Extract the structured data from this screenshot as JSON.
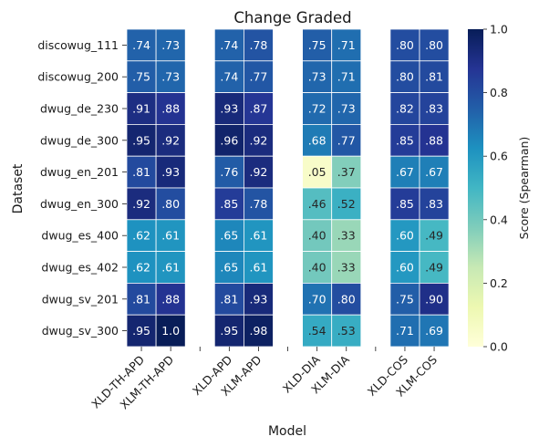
{
  "chart_data": {
    "type": "heatmap",
    "title": "Change Graded",
    "xlabel": "Model",
    "ylabel": "Dataset",
    "colorbar_label": "Score (Spearman)",
    "colorbar_ticks": [
      "0.0",
      "0.2",
      "0.4",
      "0.6",
      "0.8",
      "1.0"
    ],
    "vmin": 0.0,
    "vmax": 1.0,
    "colormap": "YlGnBu",
    "colormap_stops": [
      "#ffffd9",
      "#edf8b1",
      "#c7e9b4",
      "#7fcdbb",
      "#41b6c4",
      "#1d91c0",
      "#225ea8",
      "#253494",
      "#081d58"
    ],
    "columns": [
      "XLD-TH-APD",
      "XLM-TH-APD",
      "",
      "XLD-APD",
      "XLM-APD",
      "",
      "XLD-DIA",
      "XLM-DIA",
      "",
      "XLD-COS",
      "XLM-COS"
    ],
    "rows": [
      "discowug_111",
      "discowug_200",
      "dwug_de_230",
      "dwug_de_300",
      "dwug_en_201",
      "dwug_en_300",
      "dwug_es_400",
      "dwug_es_402",
      "dwug_sv_201",
      "dwug_sv_300"
    ],
    "values": [
      [
        0.74,
        0.73,
        null,
        0.74,
        0.78,
        null,
        0.75,
        0.71,
        null,
        0.8,
        0.8
      ],
      [
        0.75,
        0.73,
        null,
        0.74,
        0.77,
        null,
        0.73,
        0.71,
        null,
        0.8,
        0.81
      ],
      [
        0.91,
        0.88,
        null,
        0.93,
        0.87,
        null,
        0.72,
        0.73,
        null,
        0.82,
        0.83
      ],
      [
        0.95,
        0.92,
        null,
        0.96,
        0.92,
        null,
        0.68,
        0.77,
        null,
        0.85,
        0.88
      ],
      [
        0.81,
        0.93,
        null,
        0.76,
        0.92,
        null,
        0.05,
        0.37,
        null,
        0.67,
        0.67
      ],
      [
        0.92,
        0.8,
        null,
        0.85,
        0.78,
        null,
        0.46,
        0.52,
        null,
        0.85,
        0.83
      ],
      [
        0.62,
        0.61,
        null,
        0.65,
        0.61,
        null,
        0.4,
        0.33,
        null,
        0.6,
        0.49
      ],
      [
        0.62,
        0.61,
        null,
        0.65,
        0.61,
        null,
        0.4,
        0.33,
        null,
        0.6,
        0.49
      ],
      [
        0.81,
        0.88,
        null,
        0.81,
        0.93,
        null,
        0.7,
        0.8,
        null,
        0.75,
        0.9
      ],
      [
        0.95,
        1.0,
        null,
        0.95,
        0.98,
        null,
        0.54,
        0.53,
        null,
        0.71,
        0.69
      ]
    ],
    "cell_labels": [
      [
        ".74",
        ".73",
        "",
        ".74",
        ".78",
        "",
        ".75",
        ".71",
        "",
        ".80",
        ".80"
      ],
      [
        ".75",
        ".73",
        "",
        ".74",
        ".77",
        "",
        ".73",
        ".71",
        "",
        ".80",
        ".81"
      ],
      [
        ".91",
        ".88",
        "",
        ".93",
        ".87",
        "",
        ".72",
        ".73",
        "",
        ".82",
        ".83"
      ],
      [
        ".95",
        ".92",
        "",
        ".96",
        ".92",
        "",
        ".68",
        ".77",
        "",
        ".85",
        ".88"
      ],
      [
        ".81",
        ".93",
        "",
        ".76",
        ".92",
        "",
        ".05",
        ".37",
        "",
        ".67",
        ".67"
      ],
      [
        ".92",
        ".80",
        "",
        ".85",
        ".78",
        "",
        ".46",
        ".52",
        "",
        ".85",
        ".83"
      ],
      [
        ".62",
        ".61",
        "",
        ".65",
        ".61",
        "",
        ".40",
        ".33",
        "",
        ".60",
        ".49"
      ],
      [
        ".62",
        ".61",
        "",
        ".65",
        ".61",
        "",
        ".40",
        ".33",
        "",
        ".60",
        ".49"
      ],
      [
        ".81",
        ".88",
        "",
        ".81",
        ".93",
        "",
        ".70",
        ".80",
        "",
        ".75",
        ".90"
      ],
      [
        ".95",
        "1.0",
        "",
        ".95",
        ".98",
        "",
        ".54",
        ".53",
        "",
        ".71",
        ".69"
      ]
    ]
  }
}
